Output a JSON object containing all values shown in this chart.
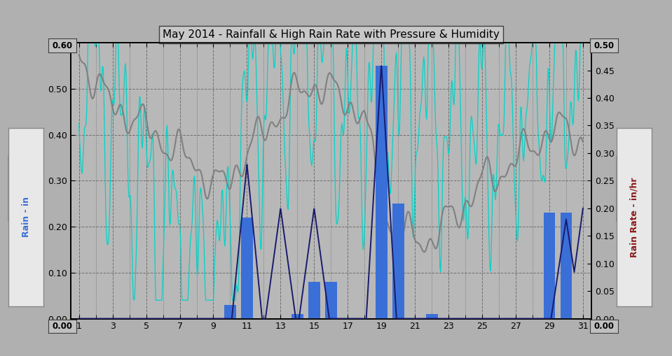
{
  "title": "May 2014 - Rainfall & High Rain Rate with Pressure & Humidity",
  "bg_color": "#b0b0b0",
  "plot_bg_color": "#b8b8b8",
  "left_ylabel": "Rain - in",
  "right_ylabel": "Rain Rate - in/hr",
  "left_ylim": [
    0.0,
    0.6
  ],
  "right_ylim": [
    0.0,
    0.5
  ],
  "left_yticks": [
    0.0,
    0.1,
    0.2,
    0.3,
    0.4,
    0.5,
    0.6
  ],
  "right_yticks": [
    0.0,
    0.05,
    0.1,
    0.15,
    0.2,
    0.25,
    0.3,
    0.35,
    0.4,
    0.45,
    0.5
  ],
  "xlim": [
    0.5,
    31.5
  ],
  "xticks": [
    1,
    3,
    5,
    7,
    9,
    11,
    13,
    15,
    17,
    19,
    21,
    23,
    25,
    27,
    29,
    31
  ],
  "days": [
    1,
    2,
    3,
    4,
    5,
    6,
    7,
    8,
    9,
    10,
    11,
    12,
    13,
    14,
    15,
    16,
    17,
    18,
    19,
    20,
    21,
    22,
    23,
    24,
    25,
    26,
    27,
    28,
    29,
    30,
    31
  ],
  "rain_bars": [
    0.0,
    0.0,
    0.0,
    0.0,
    0.0,
    0.0,
    0.0,
    0.0,
    0.0,
    0.03,
    0.22,
    0.0,
    0.0,
    0.01,
    0.08,
    0.08,
    0.0,
    0.0,
    0.55,
    0.25,
    0.0,
    0.01,
    0.0,
    0.0,
    0.0,
    0.0,
    0.0,
    0.0,
    0.23,
    0.23,
    0.0
  ],
  "bar_color": "#3a6fd8",
  "rain_rate_color": "#1a1a6e",
  "cyan_color": "#00d4c8",
  "gray_line_color": "#808080",
  "left_label_color": "#3a6fd8",
  "right_label_color": "#8b1a1a",
  "legend_bg": "#e8e8e8",
  "legend_border": "#888888",
  "title_fontsize": 11,
  "axis_fontsize": 9,
  "ylabel_fontsize": 10,
  "gray_knots_x": [
    1,
    2,
    3,
    4,
    5,
    6,
    7,
    8,
    9,
    10,
    11,
    12,
    13,
    14,
    15,
    16,
    17,
    18,
    19,
    20,
    21,
    22,
    23,
    24,
    25,
    26,
    27,
    28,
    29,
    30,
    31
  ],
  "gray_knots_y": [
    0.575,
    0.515,
    0.46,
    0.445,
    0.415,
    0.385,
    0.36,
    0.335,
    0.285,
    0.305,
    0.365,
    0.405,
    0.45,
    0.49,
    0.51,
    0.495,
    0.47,
    0.445,
    0.235,
    0.185,
    0.175,
    0.17,
    0.215,
    0.25,
    0.3,
    0.315,
    0.345,
    0.38,
    0.405,
    0.415,
    0.385
  ],
  "hum_knots_x": [
    1,
    2,
    3,
    4,
    5,
    6,
    7,
    8,
    9,
    10,
    11,
    12,
    13,
    14,
    15,
    16,
    17,
    18,
    19,
    20,
    21,
    22,
    23,
    24,
    25,
    26,
    27,
    28,
    29,
    30,
    31
  ],
  "hum_knots_y": [
    0.59,
    0.52,
    0.44,
    0.36,
    0.28,
    0.2,
    0.16,
    0.1,
    0.09,
    0.14,
    0.46,
    0.5,
    0.54,
    0.56,
    0.58,
    0.52,
    0.44,
    0.46,
    0.58,
    0.46,
    0.5,
    0.46,
    0.4,
    0.42,
    0.38,
    0.4,
    0.44,
    0.46,
    0.5,
    0.54,
    0.58
  ],
  "rr_events": {
    "11": 0.28,
    "13": 0.2,
    "15": 0.2,
    "19": 0.46,
    "30": 0.18,
    "31": 0.2
  }
}
